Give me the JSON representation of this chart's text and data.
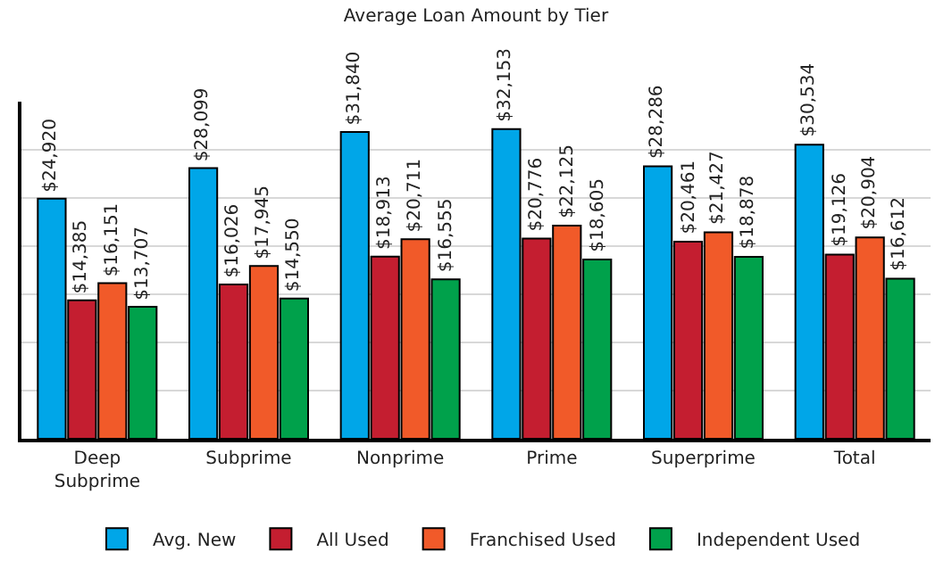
{
  "chart_data": {
    "type": "bar",
    "title": "Average Loan Amount by Tier",
    "categories": [
      "Deep Subprime",
      "Subprime",
      "Nonprime",
      "Prime",
      "Superprime",
      "Total"
    ],
    "series": [
      {
        "name": "Avg. New",
        "color": "#00a6e8",
        "values": [
          24920,
          28099,
          31840,
          32153,
          28286,
          30534
        ],
        "value_labels": [
          "$24,920",
          "$28,099",
          "$31,840",
          "$32,153",
          "$28,286",
          "$30,534"
        ]
      },
      {
        "name": "All Used",
        "color": "#c41e30",
        "values": [
          14385,
          16026,
          18913,
          20776,
          20461,
          19126
        ],
        "value_labels": [
          "$14,385",
          "$16,026",
          "$18,913",
          "$20,776",
          "$20,461",
          "$19,126"
        ]
      },
      {
        "name": "Franchised Used",
        "color": "#f15a29",
        "values": [
          16151,
          17945,
          20711,
          22125,
          21427,
          20904
        ],
        "value_labels": [
          "$16,151",
          "$17,945",
          "$20,711",
          "$22,125",
          "$21,427",
          "$20,904"
        ]
      },
      {
        "name": "Independent Used",
        "color": "#00a14b",
        "values": [
          13707,
          14550,
          16555,
          18605,
          18878,
          16612
        ],
        "value_labels": [
          "$13,707",
          "$14,550",
          "$16,555",
          "$18,605",
          "$18,878",
          "$16,612"
        ]
      }
    ],
    "ylim": [
      0,
      35000
    ],
    "yticks": [
      {
        "value": 0,
        "label": null
      },
      {
        "value": 5000,
        "label": null
      },
      {
        "value": 10000,
        "label": null
      },
      {
        "value": 15000,
        "label": null
      },
      {
        "value": 20000,
        "label": null
      },
      {
        "value": 25000,
        "label": null
      },
      {
        "value": 30000,
        "label": null
      }
    ],
    "grid": "y",
    "legend": "bottom",
    "tick_labels": "x"
  }
}
